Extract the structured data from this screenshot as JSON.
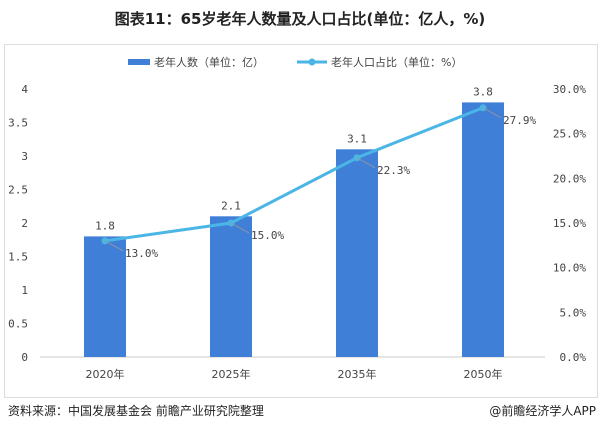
{
  "title": "图表11：65岁老年人数量及人口占比(单位：亿人，%)",
  "source": "资料来源：中国发展基金会 前瞻产业研究院整理",
  "credit": "@前瞻经济学人APP",
  "chart_data": {
    "type": "bar+line",
    "categories": [
      "2020年",
      "2025年",
      "2035年",
      "2050年"
    ],
    "series": [
      {
        "name": "老年人数（单位：亿）",
        "type": "bar",
        "axis": "left",
        "values": [
          1.8,
          2.1,
          3.1,
          3.8
        ],
        "labels": [
          "1.8",
          "2.1",
          "3.1",
          "3.8"
        ],
        "color": "#3f7fd8"
      },
      {
        "name": "老年人口占比（单位：%）",
        "type": "line",
        "axis": "right",
        "values": [
          13.0,
          15.0,
          22.3,
          27.9
        ],
        "labels": [
          "13.0%",
          "15.0%",
          "22.3%",
          "27.9%"
        ],
        "color": "#4bb6e6"
      }
    ],
    "left_axis": {
      "ylim": [
        0,
        4
      ],
      "ticks": [
        "0",
        "0.5",
        "1",
        "1.5",
        "2",
        "2.5",
        "3",
        "3.5",
        "4"
      ]
    },
    "right_axis": {
      "ylim": [
        0,
        30
      ],
      "ticks": [
        "0.0%",
        "5.0%",
        "10.0%",
        "15.0%",
        "20.0%",
        "25.0%",
        "30.0%"
      ]
    },
    "legend": "top",
    "grid": false
  }
}
